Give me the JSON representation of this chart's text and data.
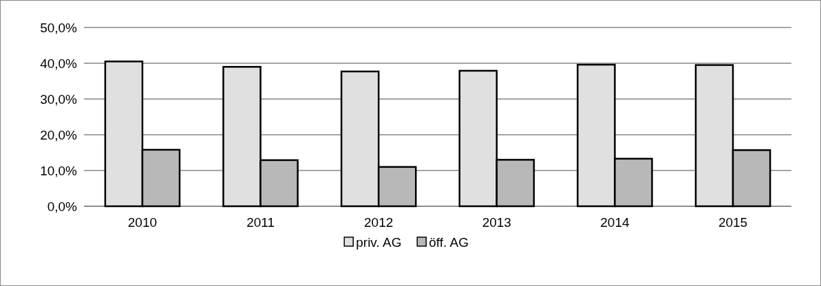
{
  "chart_data": {
    "type": "bar",
    "categories": [
      "2010",
      "2011",
      "2012",
      "2013",
      "2014",
      "2015"
    ],
    "series": [
      {
        "name": "priv. AG",
        "color": "#e0e0e0",
        "values": [
          40.5,
          39.0,
          37.7,
          37.9,
          39.6,
          39.5
        ]
      },
      {
        "name": "öff. AG",
        "color": "#b8b8b8",
        "values": [
          15.8,
          12.9,
          11.0,
          13.0,
          13.3,
          15.7
        ]
      }
    ],
    "ylim": [
      0,
      50
    ],
    "yticks": [
      {
        "value": 0,
        "label": "0,0%"
      },
      {
        "value": 10,
        "label": "10,0%"
      },
      {
        "value": 20,
        "label": "20,0%"
      },
      {
        "value": 30,
        "label": "30,0%"
      },
      {
        "value": 40,
        "label": "40,0%"
      },
      {
        "value": 50,
        "label": "50,0%"
      }
    ],
    "grid": "y",
    "legend": "bottom"
  }
}
